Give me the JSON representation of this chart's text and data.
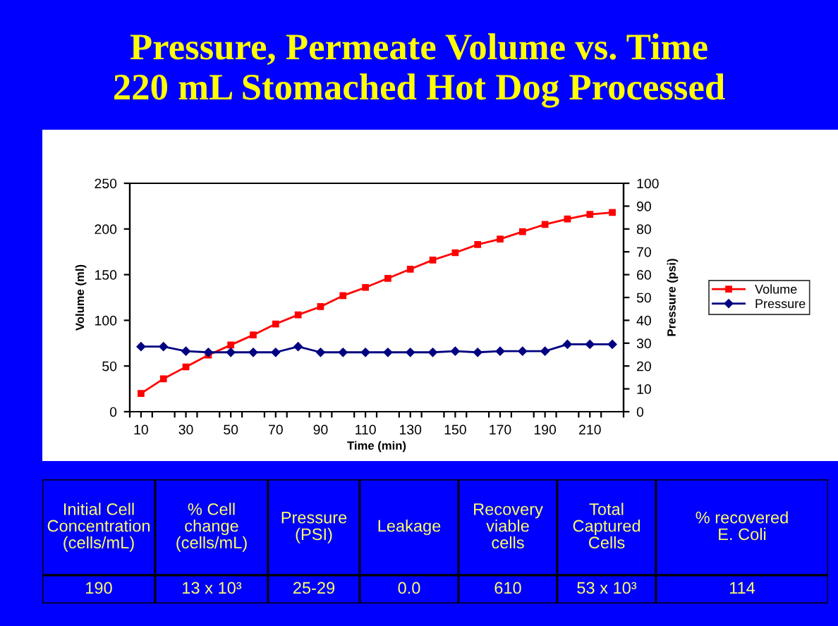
{
  "chart_data": [
    {
      "type": "line",
      "title": "Pressure, Permeate Volume vs. Time\n220 mL Stomached Hot Dog Processed",
      "xlabel": "Time (min)",
      "ylabel": "Volume (ml)",
      "y2label": "Pressure (psi)",
      "x": [
        10,
        20,
        30,
        40,
        50,
        60,
        70,
        80,
        90,
        100,
        110,
        120,
        130,
        140,
        150,
        160,
        170,
        180,
        190,
        200,
        210,
        220
      ],
      "series": [
        {
          "name": "Volume",
          "color": "#ff0000",
          "marker": "square",
          "values": [
            20,
            36,
            49,
            62,
            73,
            84,
            96,
            106,
            115,
            127,
            136,
            146,
            156,
            166,
            174,
            183,
            189,
            197,
            205,
            211,
            216,
            218
          ]
        },
        {
          "name": "Pressure",
          "color": "#000080",
          "marker": "diamond",
          "axis": "y2",
          "values": [
            28.5,
            28.5,
            26.5,
            26,
            26,
            26,
            26,
            28.5,
            26,
            26,
            26,
            26,
            26,
            26,
            26.5,
            26,
            26.5,
            26.5,
            26.5,
            29.5,
            29.5,
            29.5
          ]
        }
      ],
      "xlim": [
        5,
        225
      ],
      "xticks": [
        10,
        30,
        50,
        70,
        90,
        110,
        130,
        150,
        170,
        190,
        210,
        {
          "value": 5,
          "label": null
        },
        {
          "value": 15,
          "label": null
        },
        {
          "value": 25,
          "label": null
        },
        {
          "value": 35,
          "label": null
        },
        {
          "value": 45,
          "label": null
        },
        {
          "value": 55,
          "label": null
        },
        {
          "value": 65,
          "label": null
        },
        {
          "value": 75,
          "label": null
        },
        {
          "value": 85,
          "label": null
        },
        {
          "value": 95,
          "label": null
        },
        {
          "value": 105,
          "label": null
        },
        {
          "value": 115,
          "label": null
        },
        {
          "value": 125,
          "label": null
        },
        {
          "value": 135,
          "label": null
        },
        {
          "value": 145,
          "label": null
        },
        {
          "value": 155,
          "label": null
        },
        {
          "value": 165,
          "label": null
        },
        {
          "value": 175,
          "label": null
        },
        {
          "value": 185,
          "label": null
        },
        {
          "value": 195,
          "label": null
        },
        {
          "value": 205,
          "label": null
        },
        {
          "value": 215,
          "label": null
        },
        {
          "value": 225,
          "label": null
        }
      ],
      "ylim": [
        0,
        250
      ],
      "yticks": [
        0,
        50,
        100,
        150,
        200,
        250
      ],
      "y2lim": [
        0,
        100
      ],
      "y2ticks": [
        0,
        10,
        20,
        30,
        40,
        50,
        60,
        70,
        80,
        90,
        100
      ],
      "grid": false,
      "legend": "right"
    },
    {
      "type": "other",
      "categories": [
        "Initial Cell\nConcentration\n(cells/mL)",
        "% Cell\nchange\n(cells/mL)",
        "Pressure\n(PSI)",
        "Leakage",
        "Recovery\nviable\ncells",
        "Total\nCaptured\nCells",
        "% recovered\nE. Coli"
      ],
      "value_labels": [
        "190",
        "13 x 10³",
        "25-29",
        "0.0",
        "610",
        "53 x 10³",
        "114"
      ]
    }
  ]
}
